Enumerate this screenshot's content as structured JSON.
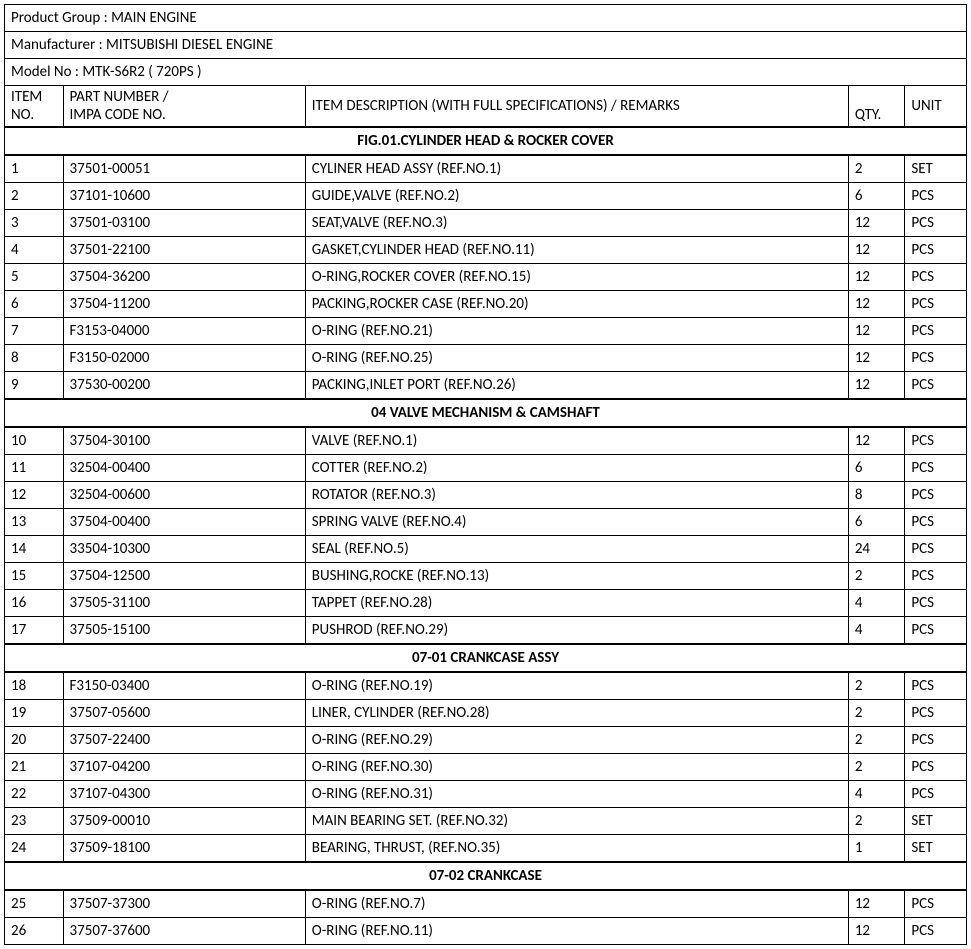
{
  "header": {
    "product_group_label": "Product Group : ",
    "product_group_value": "MAIN ENGINE",
    "manufacturer_label": "Manufacturer :   ",
    "manufacturer_value": "MITSUBISHI DIESEL ENGINE",
    "model_no_label": "Model No :  ",
    "model_no_value": "MTK-S6R2 ( 720PS )"
  },
  "columns": {
    "item_no_l1": "ITEM",
    "item_no_l2": "NO.",
    "part_no_l1": "PART NUMBER /",
    "part_no_l2": "IMPA CODE NO.",
    "desc": "ITEM DESCRIPTION (WITH FULL SPECIFICATIONS) / REMARKS",
    "qty": "QTY.",
    "unit": "UNIT"
  },
  "sections": [
    {
      "title": "FIG.01.CYLINDER HEAD & ROCKER COVER",
      "rows": [
        {
          "no": "1",
          "pn": "37501-00051",
          "desc": "CYLINER HEAD ASSY (REF.NO.1)",
          "qty": "2",
          "unit": "SET"
        },
        {
          "no": "2",
          "pn": "37101-10600",
          "desc": "GUIDE,VALVE (REF.NO.2)",
          "qty": "6",
          "unit": "PCS"
        },
        {
          "no": "3",
          "pn": "37501-03100",
          "desc": "SEAT,VALVE (REF.NO.3)",
          "qty": "12",
          "unit": "PCS"
        },
        {
          "no": "4",
          "pn": "37501-22100",
          "desc": "GASKET,CYLINDER HEAD (REF.NO.11)",
          "qty": "12",
          "unit": "PCS"
        },
        {
          "no": "5",
          "pn": "37504-36200",
          "desc": "O-RING,ROCKER COVER (REF.NO.15)",
          "qty": "12",
          "unit": "PCS"
        },
        {
          "no": "6",
          "pn": "37504-11200",
          "desc": "PACKING,ROCKER CASE (REF.NO.20)",
          "qty": "12",
          "unit": "PCS"
        },
        {
          "no": "7",
          "pn": "F3153-04000",
          "desc": "O-RING (REF.NO.21)",
          "qty": "12",
          "unit": "PCS"
        },
        {
          "no": "8",
          "pn": "F3150-02000",
          "desc": "O-RING (REF.NO.25)",
          "qty": "12",
          "unit": "PCS"
        },
        {
          "no": "9",
          "pn": "37530-00200",
          "desc": "PACKING,INLET PORT (REF.NO.26)",
          "qty": "12",
          "unit": "PCS"
        }
      ]
    },
    {
      "title": "04 VALVE MECHANISM & CAMSHAFT",
      "rows": [
        {
          "no": "10",
          "pn": "37504-30100",
          "desc": "VALVE (REF.NO.1)",
          "qty": "12",
          "unit": "PCS"
        },
        {
          "no": "11",
          "pn": "32504-00400",
          "desc": "COTTER (REF.NO.2)",
          "qty": "6",
          "unit": "PCS"
        },
        {
          "no": "12",
          "pn": "32504-00600",
          "desc": "ROTATOR (REF.NO.3)",
          "qty": "8",
          "unit": "PCS"
        },
        {
          "no": "13",
          "pn": "37504-00400",
          "desc": "SPRING VALVE (REF.NO.4)",
          "qty": "6",
          "unit": "PCS"
        },
        {
          "no": "14",
          "pn": "33504-10300",
          "desc": "SEAL (REF.NO.5)",
          "qty": "24",
          "unit": "PCS"
        },
        {
          "no": "15",
          "pn": "37504-12500",
          "desc": "BUSHING,ROCKE (REF.NO.13)",
          "qty": "2",
          "unit": "PCS"
        },
        {
          "no": "16",
          "pn": "37505-31100",
          "desc": "TAPPET (REF.NO.28)",
          "qty": "4",
          "unit": "PCS"
        },
        {
          "no": "17",
          "pn": "37505-15100",
          "desc": "PUSHROD (REF.NO.29)",
          "qty": "4",
          "unit": "PCS"
        }
      ]
    },
    {
      "title": "07-01 CRANKCASE ASSY",
      "rows": [
        {
          "no": "18",
          "pn": "F3150-03400",
          "desc": "O-RING (REF.NO.19)",
          "qty": "2",
          "unit": "PCS"
        },
        {
          "no": "19",
          "pn": "37507-05600",
          "desc": "LINER, CYLINDER (REF.NO.28)",
          "qty": "2",
          "unit": "PCS"
        },
        {
          "no": "20",
          "pn": "37507-22400",
          "desc": "O-RING (REF.NO.29)",
          "qty": "2",
          "unit": "PCS"
        },
        {
          "no": "21",
          "pn": "37107-04200",
          "desc": "O-RING (REF.NO.30)",
          "qty": "2",
          "unit": "PCS"
        },
        {
          "no": "22",
          "pn": "37107-04300",
          "desc": "O-RING (REF.NO.31)",
          "qty": "4",
          "unit": "PCS"
        },
        {
          "no": "23",
          "pn": "37509-00010",
          "desc": "MAIN BEARING SET. (REF.NO.32)",
          "qty": "2",
          "unit": "SET"
        },
        {
          "no": "24",
          "pn": "37509-18100",
          "desc": "BEARING, THRUST, (REF.NO.35)",
          "qty": "1",
          "unit": "SET"
        }
      ]
    },
    {
      "title": "07-02 CRANKCASE",
      "rows": [
        {
          "no": "25",
          "pn": "37507-37300",
          "desc": "O-RING (REF.NO.7)",
          "qty": "12",
          "unit": "PCS"
        },
        {
          "no": "26",
          "pn": "37507-37600",
          "desc": "O-RING (REF.NO.11)",
          "qty": "12",
          "unit": "PCS"
        }
      ]
    }
  ]
}
